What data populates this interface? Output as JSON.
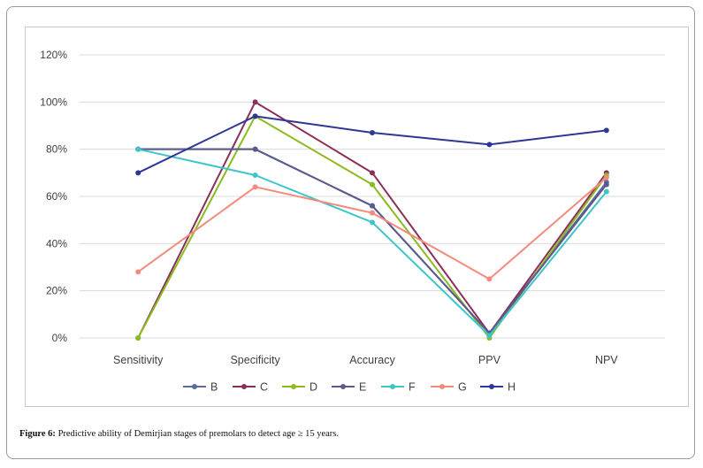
{
  "caption": {
    "label": "Figure 6:",
    "text": " Predictive ability of Demirjian stages of premolars to detect age ≥ 15 years."
  },
  "chart_data": {
    "type": "line",
    "categories": [
      "Sensitivity",
      "Specificity",
      "Accuracy",
      "PPV",
      "NPV"
    ],
    "ylim": [
      0,
      120
    ],
    "yticks": [
      "0%",
      "20%",
      "40%",
      "60%",
      "80%",
      "100%",
      "120%"
    ],
    "grid": true,
    "legend_position": "bottom",
    "series": [
      {
        "name": "B",
        "color": "#5b6b9c",
        "values": [
          80,
          80,
          56,
          2,
          66
        ]
      },
      {
        "name": "C",
        "color": "#8b2f5a",
        "values": [
          0,
          100,
          70,
          2,
          70
        ]
      },
      {
        "name": "D",
        "color": "#8dba1e",
        "values": [
          0,
          94,
          65,
          0,
          69
        ]
      },
      {
        "name": "E",
        "color": "#5a5a8e",
        "values": [
          80,
          80,
          56,
          2,
          65
        ]
      },
      {
        "name": "F",
        "color": "#3ec5c9",
        "values": [
          80,
          69,
          49,
          1,
          62
        ]
      },
      {
        "name": "G",
        "color": "#f58a7c",
        "values": [
          28,
          64,
          53,
          25,
          68
        ]
      },
      {
        "name": "H",
        "color": "#2e3796",
        "values": [
          70,
          94,
          87,
          82,
          88
        ]
      }
    ]
  }
}
